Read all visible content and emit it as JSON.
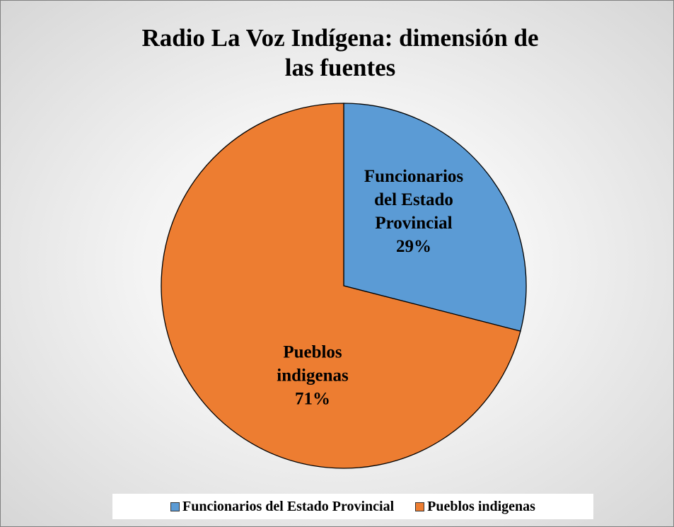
{
  "chart_data": {
    "type": "pie",
    "title": "Radio La Voz Indígena: dimensión de las fuentes",
    "categories": [
      "Funcionarios del Estado Provincial",
      "Pueblos indigenas"
    ],
    "values": [
      29,
      71
    ],
    "value_labels": [
      "29%",
      "71%"
    ],
    "colors": [
      "#5b9bd5",
      "#ed7d31"
    ],
    "legend": "bottom"
  }
}
